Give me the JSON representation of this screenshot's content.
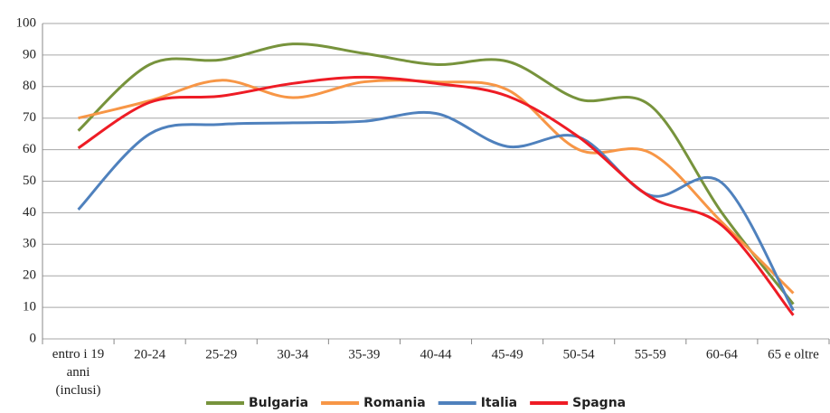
{
  "chart_data": {
    "type": "line",
    "categories": [
      "entro i 19 anni (inclusi)",
      "20-24",
      "25-29",
      "30-34",
      "35-39",
      "40-44",
      "45-49",
      "50-54",
      "55-59",
      "60-64",
      "65 e oltre"
    ],
    "series": [
      {
        "name": "Bulgaria",
        "color": "#77933c",
        "values": [
          66,
          87,
          88.5,
          93.5,
          90.5,
          87,
          88,
          76,
          74,
          40,
          11
        ]
      },
      {
        "name": "Romania",
        "color": "#f79646",
        "values": [
          70,
          75.5,
          82,
          76.5,
          81.5,
          81.5,
          79,
          60,
          59,
          37,
          14.5
        ]
      },
      {
        "name": "Italia",
        "color": "#4f81bd",
        "values": [
          41,
          65,
          68,
          68.5,
          69,
          71.5,
          61,
          64,
          45.5,
          49.5,
          9
        ]
      },
      {
        "name": "Spagna",
        "color": "#ee1c25",
        "values": [
          60.5,
          75,
          77,
          81,
          83,
          81,
          77,
          64,
          45,
          36,
          7.5
        ]
      }
    ],
    "ylim": [
      0,
      100
    ],
    "yticks": [
      0,
      10,
      20,
      30,
      40,
      50,
      60,
      70,
      80,
      90,
      100
    ],
    "grid": true,
    "legend": "bottom"
  }
}
